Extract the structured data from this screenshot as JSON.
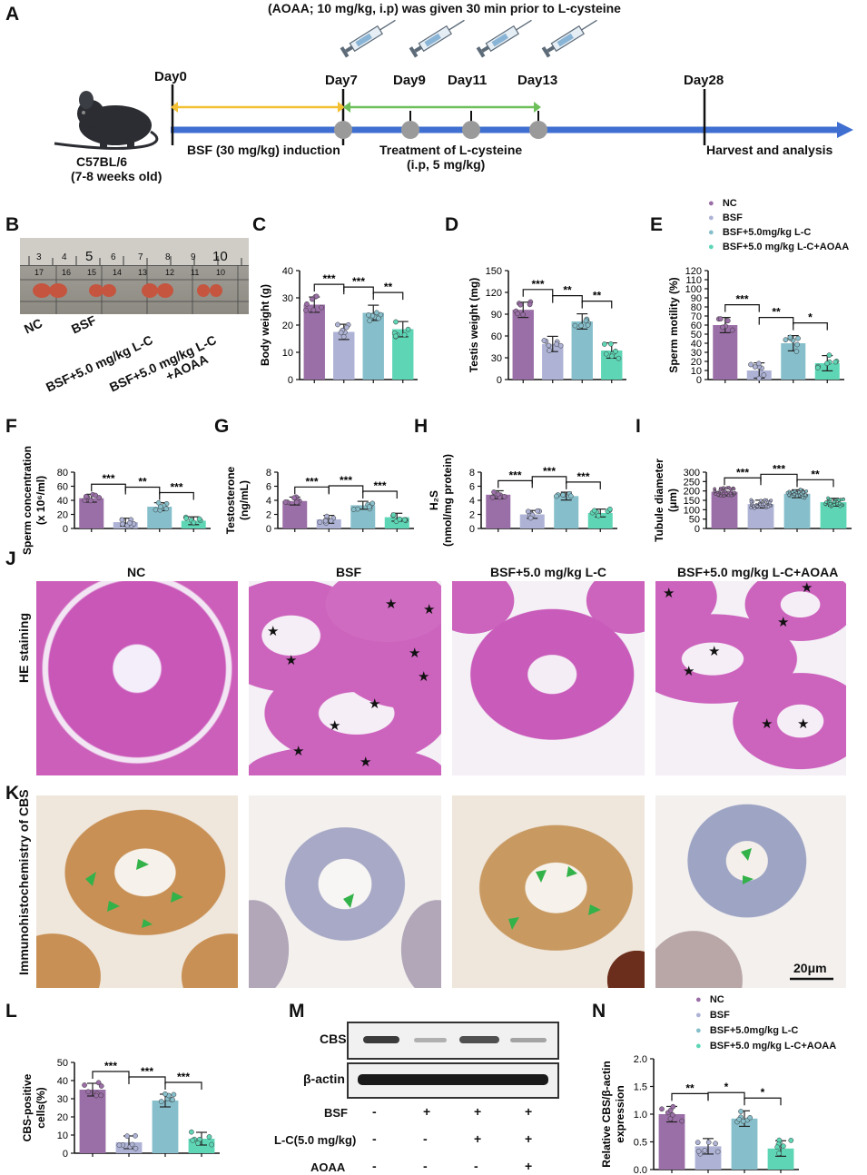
{
  "panels": {
    "A": "A",
    "B": "B",
    "C": "C",
    "D": "D",
    "E": "E",
    "F": "F",
    "G": "G",
    "H": "H",
    "I": "I",
    "J": "J",
    "K": "K",
    "L": "L",
    "M": "M",
    "N": "N"
  },
  "timeline": {
    "top_note": "(AOAA; 10 mg/kg, i.p) was given 30 min prior to L-cysteine",
    "mouse_label_1": "C57BL/6",
    "mouse_label_2": "(7-8 weeks old)",
    "days": [
      "Day0",
      "Day7",
      "Day9",
      "Day11",
      "Day13",
      "Day28"
    ],
    "induction": "BSF (30 mg/kg) induction",
    "treatment_1": "Treatment of L-cysteine",
    "treatment_2": "(i.p, 5 mg/kg)",
    "harvest": "Harvest and analysis",
    "colors": {
      "main": "#3f6fd0",
      "yellow": "#f2c032",
      "green": "#6cbf59",
      "dot": "#9a9a9a"
    }
  },
  "panelB": {
    "ruler_numbers_top": [
      "3",
      "4",
      "5",
      "6",
      "7",
      "8",
      "9",
      "10"
    ],
    "ruler_numbers_bottom": [
      "17",
      "16",
      "15",
      "14",
      "13",
      "12",
      "11",
      "10"
    ],
    "labels": [
      "NC",
      "BSF",
      "BSF+5.0 mg/kg L-C",
      "BSF+5.0 mg/kg L-C",
      "+AOAA"
    ]
  },
  "legend": {
    "items": [
      "NC",
      "BSF",
      "BSF+5.0mg/kg L-C",
      "BSF+5.0 mg/kg L-C+AOAA"
    ],
    "colors": [
      "#9a6ea6",
      "#aeb3d6",
      "#86bfcb",
      "#5ed6b6"
    ]
  },
  "chart_data": [
    {
      "id": "C",
      "type": "bar",
      "categories": [
        "NC",
        "BSF",
        "BSF+5.0mg/kg L-C",
        "BSF+5.0 mg/kg L-C+AOAA"
      ],
      "values": [
        27.5,
        17.5,
        24.5,
        18.5
      ],
      "ylabel": "Body weight (g)",
      "ylim": [
        0,
        40
      ],
      "ticks": [
        "0",
        "10",
        "20",
        "30",
        "40"
      ],
      "sig": [
        "***",
        "***",
        "**"
      ]
    },
    {
      "id": "D",
      "type": "bar",
      "categories": [
        "NC",
        "BSF",
        "BSF+5.0mg/kg L-C",
        "BSF+5.0 mg/kg L-C+AOAA"
      ],
      "values": [
        96,
        49,
        80,
        40
      ],
      "ylabel": "Testis weight (mg)",
      "ylim": [
        0,
        150
      ],
      "ticks": [
        "0",
        "30",
        "60",
        "90",
        "120",
        "150"
      ],
      "sig": [
        "***",
        "**",
        "**"
      ]
    },
    {
      "id": "E",
      "type": "bar",
      "categories": [
        "NC",
        "BSF",
        "BSF+5.0mg/kg L-C",
        "BSF+5.0 mg/kg L-C+AOAA"
      ],
      "values": [
        60,
        10,
        40,
        18
      ],
      "ylabel": "Sperm motility (%)",
      "ylim": [
        0,
        120
      ],
      "ticks": [
        "0",
        "10",
        "20",
        "30",
        "40",
        "50",
        "60",
        "70",
        "80",
        "90",
        "100",
        "110",
        "120"
      ],
      "sig": [
        "***",
        "**",
        "*"
      ]
    },
    {
      "id": "F",
      "type": "bar",
      "categories": [
        "NC",
        "BSF",
        "BSF+5.0mg/kg L-C",
        "BSF+5.0 mg/kg L-C+AOAA"
      ],
      "values": [
        43,
        9,
        31,
        11
      ],
      "ylabel": "Sperm concentration",
      "ylabel2": "(x 10⁶/ml)",
      "ylim": [
        0,
        80
      ],
      "ticks": [
        "0",
        "20",
        "40",
        "60",
        "80"
      ],
      "sig": [
        "***",
        "**",
        "***"
      ]
    },
    {
      "id": "G",
      "type": "bar",
      "categories": [
        "NC",
        "BSF",
        "BSF+5.0mg/kg L-C",
        "BSF+5.0 mg/kg L-C+AOAA"
      ],
      "values": [
        3.9,
        1.3,
        3.3,
        1.6
      ],
      "ylabel": "Testosterone",
      "ylabel2": "(ng/mL)",
      "ylim": [
        0,
        8
      ],
      "ticks": [
        "0",
        "2",
        "4",
        "6",
        "8"
      ],
      "sig": [
        "***",
        "***",
        "***"
      ]
    },
    {
      "id": "H",
      "type": "bar",
      "categories": [
        "NC",
        "BSF",
        "BSF+5.0mg/kg L-C",
        "BSF+5.0 mg/kg L-C+AOAA"
      ],
      "values": [
        4.8,
        2.0,
        4.6,
        2.2
      ],
      "ylabel": "H₂S",
      "ylabel2": "(nmol/mg protein)",
      "ylim": [
        0,
        8
      ],
      "ticks": [
        "0",
        "2",
        "4",
        "6",
        "8"
      ],
      "sig": [
        "***",
        "***",
        "***"
      ]
    },
    {
      "id": "I",
      "type": "bar",
      "categories": [
        "NC",
        "BSF",
        "BSF+5.0mg/kg L-C",
        "BSF+5.0 mg/kg L-C+AOAA"
      ],
      "values": [
        195,
        130,
        185,
        140
      ],
      "ylabel": "Tubule diameter",
      "ylabel2": "(μm)",
      "ylim": [
        0,
        300
      ],
      "ticks": [
        "0",
        "50",
        "100",
        "150",
        "200",
        "250",
        "300"
      ],
      "sig": [
        "***",
        "***",
        "**"
      ]
    },
    {
      "id": "L",
      "type": "bar",
      "categories": [
        "NC",
        "BSF",
        "BSF+5.0mg/kg L-C",
        "BSF+5.0 mg/kg L-C+AOAA"
      ],
      "values": [
        35,
        6,
        29,
        8
      ],
      "ylabel": "CBS-positive",
      "ylabel2": "cells(%)",
      "ylim": [
        0,
        50
      ],
      "ticks": [
        "0",
        "10",
        "20",
        "30",
        "40",
        "50"
      ],
      "sig": [
        "***",
        "***",
        "***"
      ]
    },
    {
      "id": "N",
      "type": "bar",
      "categories": [
        "NC",
        "BSF",
        "BSF+5.0mg/kg L-C",
        "BSF+5.0 mg/kg L-C+AOAA"
      ],
      "values": [
        1.0,
        0.42,
        0.92,
        0.38
      ],
      "ylabel": "Relative CBS/β-actin",
      "ylabel2": "expression",
      "ylim": [
        0,
        2.0
      ],
      "ticks": [
        "0.0",
        "0.5",
        "1.0",
        "1.5",
        "2.0"
      ],
      "sig": [
        "**",
        "*",
        "*"
      ]
    }
  ],
  "histology": {
    "columns": [
      "NC",
      "BSF",
      "BSF+5.0 mg/kg L-C",
      "BSF+5.0 mg/kg L-C+AOAA"
    ],
    "row_J": "HE staining",
    "row_K": "Immunohistochemistry of CBS",
    "scale": "20μm"
  },
  "blot": {
    "bands": [
      "CBS",
      "β-actin"
    ],
    "rows": [
      {
        "label": "BSF",
        "values": [
          "-",
          "+",
          "+",
          "+"
        ]
      },
      {
        "label": "L-C(5.0 mg/kg)",
        "values": [
          "-",
          "-",
          "+",
          "+"
        ]
      },
      {
        "label": "AOAA",
        "values": [
          "-",
          "-",
          "-",
          "+"
        ]
      }
    ]
  }
}
